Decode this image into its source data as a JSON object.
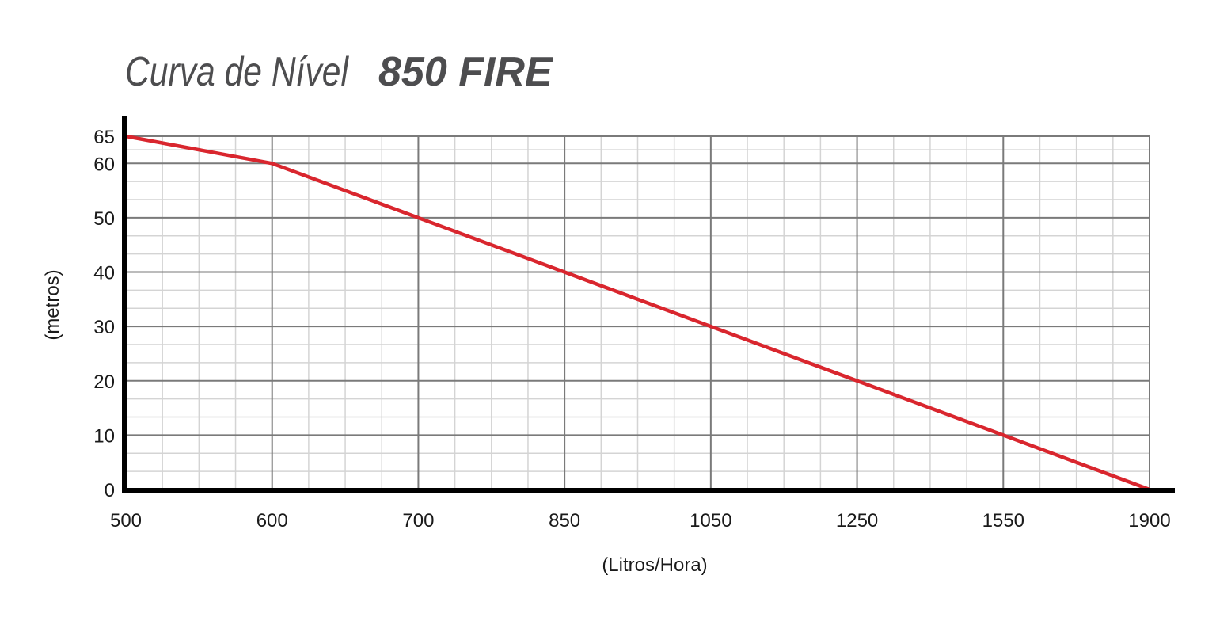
{
  "chart_data": {
    "type": "line",
    "title_prefix": "Curva de Nível",
    "title_model": "850 FIRE",
    "xlabel": "(Litros/Hora)",
    "ylabel": "(metros)",
    "x_tick_labels": [
      "500",
      "600",
      "700",
      "850",
      "1050",
      "1250",
      "1550",
      "1900"
    ],
    "y_tick_labels": [
      "0",
      "10",
      "20",
      "30",
      "40",
      "50",
      "60",
      "65"
    ],
    "y_ticks": [
      0,
      10,
      20,
      30,
      40,
      50,
      60,
      65
    ],
    "ylim": [
      0,
      65
    ],
    "grid": true,
    "series": [
      {
        "color": "#d9262e",
        "x": [
          500,
          600,
          700,
          850,
          1050,
          1250,
          1550,
          1900
        ],
        "y": [
          65,
          60,
          50,
          40,
          30,
          20,
          10,
          0
        ]
      }
    ]
  }
}
